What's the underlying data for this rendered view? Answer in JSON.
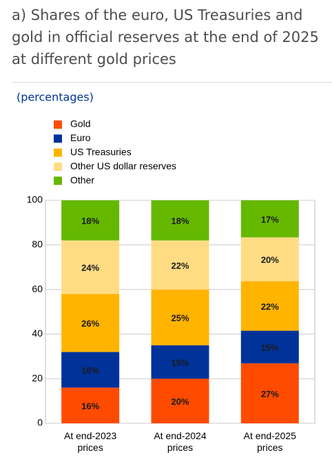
{
  "chart_data": {
    "type": "stacked_bar",
    "title": "a) Shares of the euro, US Treasuries and gold in official reserves at the end of 2025 at different gold prices",
    "subtitle": "(percentages)",
    "categories": [
      "At end-2023 prices",
      "At end-2024 prices",
      "At end-2025 prices"
    ],
    "series": [
      {
        "name": "Gold",
        "color": "#ff4b00",
        "values": [
          16,
          20,
          26.9
        ],
        "value_labels": [
          "16%",
          "20%",
          "27%"
        ]
      },
      {
        "name": "Euro",
        "color": "#003299",
        "values": [
          16,
          15,
          14.6
        ],
        "value_labels": [
          "16%",
          "15%",
          "15%"
        ]
      },
      {
        "name": "US Treasuries",
        "color": "#ffb400",
        "values": [
          26,
          25,
          22.2
        ],
        "value_labels": [
          "26%",
          "25%",
          "22%"
        ]
      },
      {
        "name": "Other US dollar reserves",
        "color": "#ffdc84",
        "values": [
          24,
          22,
          19.7
        ],
        "value_labels": [
          "24%",
          "22%",
          "20%"
        ]
      },
      {
        "name": "Other",
        "color": "#65b800",
        "values": [
          18,
          18,
          16.6
        ],
        "value_labels": [
          "18%",
          "18%",
          "17%"
        ]
      }
    ],
    "ylim": [
      0,
      100
    ],
    "yticks": [
      0,
      20,
      40,
      60,
      80,
      100
    ],
    "grid": true,
    "legend": "top-left"
  }
}
